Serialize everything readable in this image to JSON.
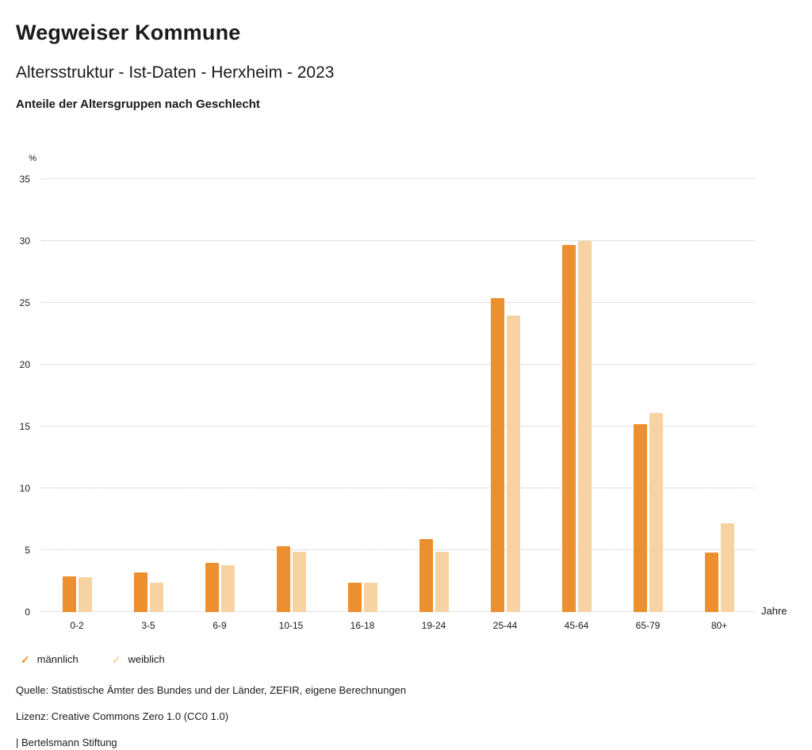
{
  "header": {
    "title": "Wegweiser Kommune",
    "subtitle": "Altersstruktur - Ist-Daten - Herxheim - 2023",
    "chart_title": "Anteile der Altersgruppen nach Geschlecht"
  },
  "chart_data": {
    "type": "bar",
    "categories": [
      "0-2",
      "3-5",
      "6-9",
      "10-15",
      "16-18",
      "19-24",
      "25-44",
      "45-64",
      "65-79",
      "80+"
    ],
    "series": [
      {
        "name": "männlich",
        "color": "#ec8f2e",
        "values": [
          2.9,
          3.2,
          4.0,
          5.3,
          2.4,
          5.9,
          25.4,
          29.7,
          15.2,
          4.8
        ]
      },
      {
        "name": "weiblich",
        "color": "#f7d2a2",
        "values": [
          2.8,
          2.4,
          3.8,
          4.9,
          2.4,
          4.9,
          24.0,
          30.0,
          16.1,
          7.2
        ]
      }
    ],
    "title": "Anteile der Altersgruppen nach Geschlecht",
    "ylabel": "%",
    "xlabel": "Jahre",
    "ylim": [
      0,
      35
    ],
    "ytick_step": 5,
    "grid": true,
    "legend_position": "bottom"
  },
  "footer": {
    "source": "Quelle: Statistische Ämter des Bundes und der Länder, ZEFIR, eigene Berechnungen",
    "license": "Lizenz: Creative Commons Zero 1.0 (CC0 1.0)",
    "attribution": "| Bertelsmann Stiftung"
  }
}
